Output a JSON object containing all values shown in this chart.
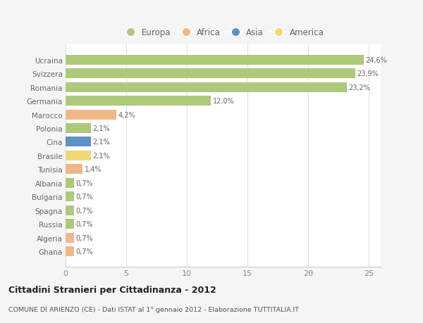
{
  "countries": [
    "Ghana",
    "Algeria",
    "Russia",
    "Spagna",
    "Bulgaria",
    "Albania",
    "Tunisia",
    "Brasile",
    "Cina",
    "Polonia",
    "Marocco",
    "Germania",
    "Romania",
    "Svizzera",
    "Ucraina"
  ],
  "values": [
    0.7,
    0.7,
    0.7,
    0.7,
    0.7,
    0.7,
    1.4,
    2.1,
    2.1,
    2.1,
    4.2,
    12.0,
    23.2,
    23.9,
    24.6
  ],
  "colors": [
    "#f0b888",
    "#f0b888",
    "#adc97a",
    "#adc97a",
    "#adc97a",
    "#adc97a",
    "#f0b888",
    "#f0d878",
    "#6090c8",
    "#adc97a",
    "#f0b888",
    "#adc97a",
    "#adc97a",
    "#adc97a",
    "#adc97a"
  ],
  "labels": [
    "0,7%",
    "0,7%",
    "0,7%",
    "0,7%",
    "0,7%",
    "0,7%",
    "1,4%",
    "2,1%",
    "2,1%",
    "2,1%",
    "4,2%",
    "12,0%",
    "23,2%",
    "23,9%",
    "24,6%"
  ],
  "legend_labels": [
    "Europa",
    "Africa",
    "Asia",
    "America"
  ],
  "legend_colors": [
    "#adc97a",
    "#f0b888",
    "#6090c8",
    "#f0d878"
  ],
  "title": "Cittadini Stranieri per Cittadinanza - 2012",
  "subtitle": "COMUNE DI ARIENZO (CE) - Dati ISTAT al 1° gennaio 2012 - Elaborazione TUTTITALIA.IT",
  "xlim": [
    0,
    26
  ],
  "xticks": [
    0,
    5,
    10,
    15,
    20,
    25
  ],
  "background_color": "#f5f5f5",
  "bar_background": "#ffffff",
  "grid_color": "#e0e0e0"
}
